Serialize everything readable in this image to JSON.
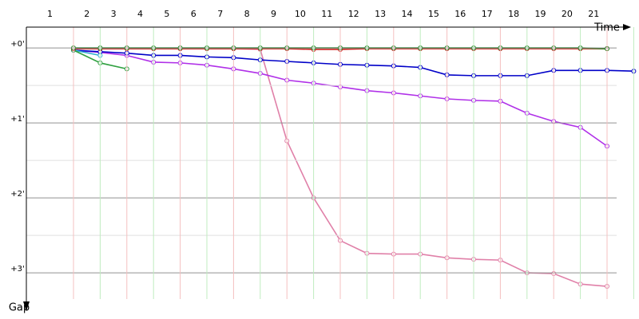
{
  "chart_data": {
    "type": "line",
    "x_label": "Time",
    "y_label": "Gap",
    "categories": [
      "1",
      "2",
      "3",
      "4",
      "5",
      "6",
      "7",
      "8",
      "9",
      "10",
      "11",
      "12",
      "13",
      "14",
      "15",
      "16",
      "17",
      "18",
      "19",
      "20",
      "21",
      null
    ],
    "ylim": [
      -0.32,
      3.35
    ],
    "y_inverted": true,
    "yticks": [
      {
        "value": 0,
        "label": "+0'"
      },
      {
        "value": 1,
        "label": "+1'"
      },
      {
        "value": 2,
        "label": "+2'"
      },
      {
        "value": 3,
        "label": "+3'"
      }
    ],
    "minor_yticks": [
      0.5,
      1.5,
      2.5
    ],
    "grid": true,
    "series": [
      {
        "color": "#e080a8",
        "values": [
          0.01,
          0.01,
          0.01,
          0.01,
          0.01,
          0.01,
          0.01,
          0.02,
          1.24,
          2.0,
          2.57,
          2.74,
          2.75,
          2.75,
          2.8,
          2.82,
          2.83,
          3.0,
          3.01,
          3.15,
          3.18,
          null
        ]
      },
      {
        "color": "#b030e8",
        "values": [
          0.03,
          0.06,
          0.1,
          0.19,
          0.2,
          0.23,
          0.28,
          0.34,
          0.43,
          0.47,
          0.52,
          0.57,
          0.6,
          0.64,
          0.68,
          0.7,
          0.71,
          0.87,
          0.98,
          1.06,
          1.31,
          null
        ]
      },
      {
        "color": "#0000c8",
        "values": [
          0.03,
          0.05,
          0.07,
          0.1,
          0.1,
          0.12,
          0.13,
          0.16,
          0.18,
          0.2,
          0.22,
          0.23,
          0.24,
          0.26,
          0.36,
          0.37,
          0.37,
          0.37,
          0.3,
          0.3,
          0.3,
          0.31
        ]
      },
      {
        "color": "#30b0d0",
        "values": [
          0.03,
          0.1,
          null,
          null,
          null,
          null,
          null,
          null,
          null,
          null,
          null,
          null,
          null,
          null,
          null,
          null,
          null,
          null,
          null,
          null,
          null,
          null
        ]
      },
      {
        "color": "#30a040",
        "values": [
          0.03,
          0.2,
          0.28,
          null,
          null,
          null,
          null,
          null,
          null,
          null,
          null,
          null,
          null,
          null,
          null,
          null,
          null,
          null,
          null,
          null,
          null,
          null
        ]
      },
      {
        "color": "#d02020",
        "values": [
          0.01,
          0.01,
          0.01,
          0.01,
          0.01,
          0.01,
          0.01,
          0.01,
          0.01,
          0.02,
          0.02,
          0.01,
          0.01,
          0.01,
          0.01,
          0.01,
          0.01,
          0.01,
          0.01,
          0.01,
          0.01,
          null
        ]
      },
      {
        "color": "#108010",
        "values": [
          0.0,
          0.0,
          0.0,
          0.0,
          0.0,
          0.0,
          0.0,
          0.0,
          0.0,
          0.0,
          0.0,
          0.0,
          0.0,
          0.0,
          0.0,
          0.0,
          0.0,
          0.0,
          0.0,
          0.0,
          0.01,
          null
        ]
      }
    ]
  }
}
